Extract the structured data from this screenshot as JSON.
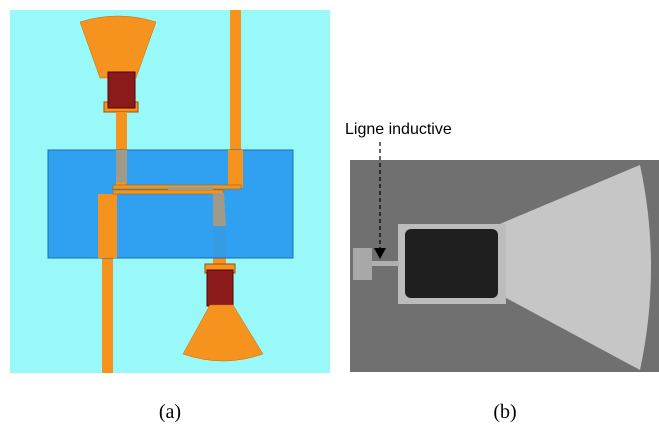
{
  "annotation": "Ligne inductive",
  "panels": [
    {
      "label": "(a)"
    },
    {
      "label": "(b)"
    }
  ]
}
